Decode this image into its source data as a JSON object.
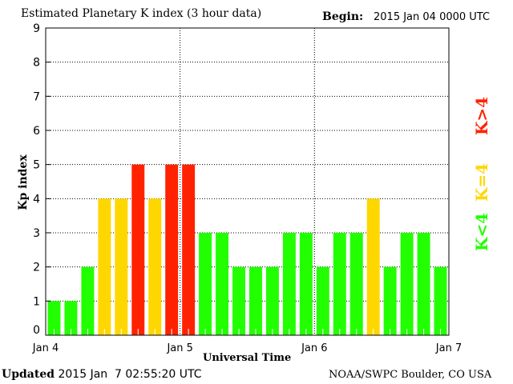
{
  "chart_data": {
    "type": "bar",
    "title": "Estimated Planetary K index (3 hour data)",
    "begin_label": "Begin:",
    "begin_value": "2015 Jan 04 0000 UTC",
    "xlabel": "Universal Time",
    "ylabel": "Kp index",
    "ylim": [
      0,
      9
    ],
    "yticks": [
      "0",
      "1",
      "2",
      "3",
      "4",
      "5",
      "6",
      "7",
      "8",
      "9"
    ],
    "xticks": [
      "Jan 4",
      "Jan 5",
      "Jan 6",
      "Jan 7"
    ],
    "values": [
      1,
      1,
      2,
      4,
      4,
      5,
      4,
      5,
      5,
      3,
      3,
      2,
      2,
      2,
      3,
      3,
      2,
      3,
      3,
      4,
      2,
      3,
      3,
      2
    ],
    "interval_hours": 3,
    "legend": [
      {
        "label": "K>4",
        "color": "#ff2200"
      },
      {
        "label": "K=4",
        "color": "#ffd700"
      },
      {
        "label": "K<4",
        "color": "#22ff00"
      }
    ],
    "grid": "dotted at days and Kp integers"
  },
  "footer": {
    "updated_label": "Updated",
    "updated_value": "2015 Jan  7 02:55:20 UTC",
    "source": "NOAA/SWPC Boulder, CO USA"
  }
}
